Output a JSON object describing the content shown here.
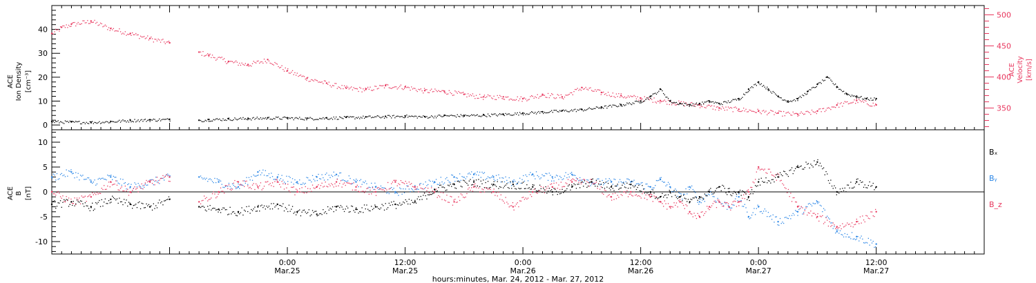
{
  "chart_data": [
    {
      "type": "scatter",
      "panel": "top",
      "ylabel_left": [
        "ACE",
        "Ion Density",
        "[cm⁻³]"
      ],
      "ylabel_right": [
        "ACE",
        "Velocity",
        "[km/s]"
      ],
      "ylim_left": [
        -2,
        50
      ],
      "ylim_right": [
        315,
        515
      ],
      "yticks_left": [
        0,
        10,
        20,
        30,
        40
      ],
      "yticks_right": [
        350,
        400,
        450,
        500
      ],
      "colors": {
        "density": "#000000",
        "velocity": "#e8365d"
      },
      "series": [
        {
          "name": "Ion Density",
          "axis": "left",
          "color": "#000000",
          "x": [
            0,
            2,
            4,
            6,
            8,
            10,
            12,
            13,
            15,
            16,
            18,
            20,
            22,
            24,
            26,
            28,
            30,
            32,
            34,
            36,
            38,
            40,
            42,
            44,
            46,
            48,
            50,
            52,
            54,
            56,
            58,
            60,
            61,
            62,
            63,
            64,
            65,
            66,
            67,
            68,
            70,
            71,
            72,
            73,
            74,
            75,
            76,
            77,
            78,
            79,
            80,
            81,
            82,
            83,
            84
          ],
          "y": [
            1.5,
            1.3,
            1.2,
            1.5,
            2,
            2.2,
            2.4,
            null,
            2,
            2.3,
            2.6,
            2.8,
            3,
            3,
            2.8,
            3,
            3.2,
            3.4,
            3.6,
            3.8,
            3.5,
            4,
            4,
            4.2,
            4.5,
            5,
            5.5,
            6,
            6.5,
            7.5,
            8.5,
            10,
            12,
            15,
            10,
            9,
            8.5,
            9,
            10,
            9,
            11,
            15,
            18,
            15,
            12,
            10,
            11,
            14,
            17,
            20,
            16,
            13,
            12,
            11,
            11
          ]
        },
        {
          "name": "Velocity",
          "axis": "right",
          "color": "#e8365d",
          "x": [
            0,
            1,
            2,
            4,
            6,
            8,
            10,
            12,
            13,
            15,
            16,
            18,
            20,
            22,
            24,
            26,
            28,
            30,
            32,
            34,
            36,
            38,
            40,
            42,
            44,
            46,
            48,
            50,
            52,
            54,
            56,
            58,
            60,
            62,
            64,
            66,
            68,
            70,
            72,
            74,
            76,
            78,
            80,
            82,
            84
          ],
          "y": [
            470,
            480,
            485,
            490,
            478,
            470,
            462,
            455,
            null,
            440,
            435,
            425,
            420,
            428,
            410,
            398,
            390,
            382,
            380,
            386,
            384,
            378,
            377,
            372,
            368,
            368,
            365,
            372,
            368,
            383,
            375,
            370,
            366,
            362,
            358,
            355,
            350,
            348,
            345,
            342,
            340,
            345,
            355,
            362,
            355
          ]
        }
      ]
    },
    {
      "type": "scatter",
      "panel": "bottom",
      "ylabel": [
        "ACE",
        "B",
        "[nT]"
      ],
      "ylim": [
        -12.5,
        12.5
      ],
      "yticks": [
        -10,
        -5,
        0,
        5,
        10
      ],
      "zero_line": true,
      "legend": [
        "Bₓ",
        "Bᵧ",
        "B_z"
      ],
      "legend_placement": "right",
      "colors": {
        "Bx": "#000000",
        "By": "#2a86e6",
        "Bz": "#e8365d"
      },
      "series": [
        {
          "name": "Bₓ",
          "color": "#000000",
          "x": [
            0,
            2,
            4,
            6,
            8,
            10,
            12,
            13,
            15,
            17,
            19,
            21,
            23,
            25,
            27,
            29,
            31,
            33,
            35,
            37,
            39,
            41,
            43,
            45,
            47,
            49,
            51,
            53,
            55,
            57,
            59,
            61,
            62,
            63,
            64,
            65,
            66,
            67,
            68,
            69,
            70,
            71,
            72,
            74,
            76,
            78,
            80,
            82,
            84
          ],
          "y": [
            -2.5,
            -2,
            -3,
            -1.5,
            -2.5,
            -3,
            -1.5,
            null,
            -3,
            -3.5,
            -4,
            -3,
            -2.5,
            -4,
            -4.5,
            -3,
            -3.5,
            -3,
            -2.5,
            -2,
            0.5,
            1.5,
            2,
            1.5,
            1.5,
            1,
            0,
            1,
            2,
            1,
            1.5,
            0,
            -1,
            0,
            -1,
            -2,
            -1,
            0,
            1,
            0,
            0,
            -1,
            2,
            3,
            5,
            6,
            0,
            2,
            1
          ]
        },
        {
          "name": "Bᵧ",
          "color": "#2a86e6",
          "x": [
            0,
            2,
            4,
            6,
            8,
            10,
            12,
            13,
            15,
            17,
            19,
            21,
            23,
            25,
            27,
            29,
            31,
            33,
            35,
            37,
            39,
            41,
            43,
            45,
            47,
            49,
            51,
            53,
            55,
            57,
            59,
            61,
            62,
            63,
            64,
            65,
            66,
            67,
            68,
            69,
            70,
            71,
            72,
            74,
            76,
            78,
            80,
            82,
            84
          ],
          "y": [
            3,
            4,
            2,
            3,
            1,
            2,
            3,
            null,
            3,
            2,
            1,
            4,
            3,
            2,
            3,
            3.5,
            2,
            1,
            0,
            1,
            2,
            3,
            3.5,
            3,
            2,
            3.5,
            3,
            3.5,
            2,
            2,
            2,
            1,
            2.5,
            1,
            -1,
            1,
            -2,
            0,
            -2,
            -3,
            -1,
            -5,
            -3,
            -6,
            -4,
            -2,
            -8,
            -9,
            -10.5
          ]
        },
        {
          "name": "B_z",
          "color": "#e8365d",
          "x": [
            0,
            2,
            4,
            6,
            8,
            10,
            12,
            13,
            15,
            17,
            19,
            21,
            23,
            25,
            27,
            29,
            31,
            33,
            35,
            37,
            39,
            41,
            43,
            45,
            47,
            49,
            51,
            53,
            55,
            57,
            59,
            61,
            62,
            63,
            64,
            65,
            66,
            67,
            68,
            69,
            70,
            71,
            72,
            74,
            76,
            78,
            80,
            82,
            84
          ],
          "y": [
            0,
            -2,
            -1,
            2,
            0,
            2,
            3,
            null,
            -2,
            0,
            2,
            1,
            2,
            0,
            1,
            2,
            1,
            0,
            2,
            1,
            0,
            -2,
            1,
            0,
            -3,
            0,
            1,
            2,
            2,
            -1,
            0,
            -1,
            -2,
            -3,
            -2,
            -4,
            -5,
            -3,
            -2,
            -3,
            -2,
            0,
            5,
            3,
            -3,
            -5,
            -7,
            -6,
            -4
          ]
        }
      ]
    }
  ],
  "x_axis": {
    "tick_labels": [
      {
        "time": "0:00",
        "date": "Mar.25"
      },
      {
        "time": "12:00",
        "date": "Mar.25"
      },
      {
        "time": "0:00",
        "date": "Mar.26"
      },
      {
        "time": "12:00",
        "date": "Mar.26"
      },
      {
        "time": "0:00",
        "date": "Mar.27"
      },
      {
        "time": "12:00",
        "date": "Mar.27"
      }
    ],
    "tick_hours": [
      24,
      36,
      48,
      60,
      72,
      84
    ],
    "xlim_hours": [
      0,
      95
    ],
    "xlabel": "hours:minutes, Mar. 24, 2012 - Mar. 27, 2012"
  },
  "top_axis_title_left": {
    "l1": "ACE",
    "l2": "Ion Density",
    "l3": "[cm⁻³]"
  },
  "top_axis_title_right": {
    "l1": "ACE",
    "l2": "Velocity",
    "l3": "[km/s]"
  },
  "bottom_axis_title": {
    "l1": "ACE",
    "l2": "B",
    "l3": "[nT]"
  },
  "legend_labels": {
    "bx": "Bₓ",
    "by": "Bᵧ",
    "bz": "B_z"
  }
}
